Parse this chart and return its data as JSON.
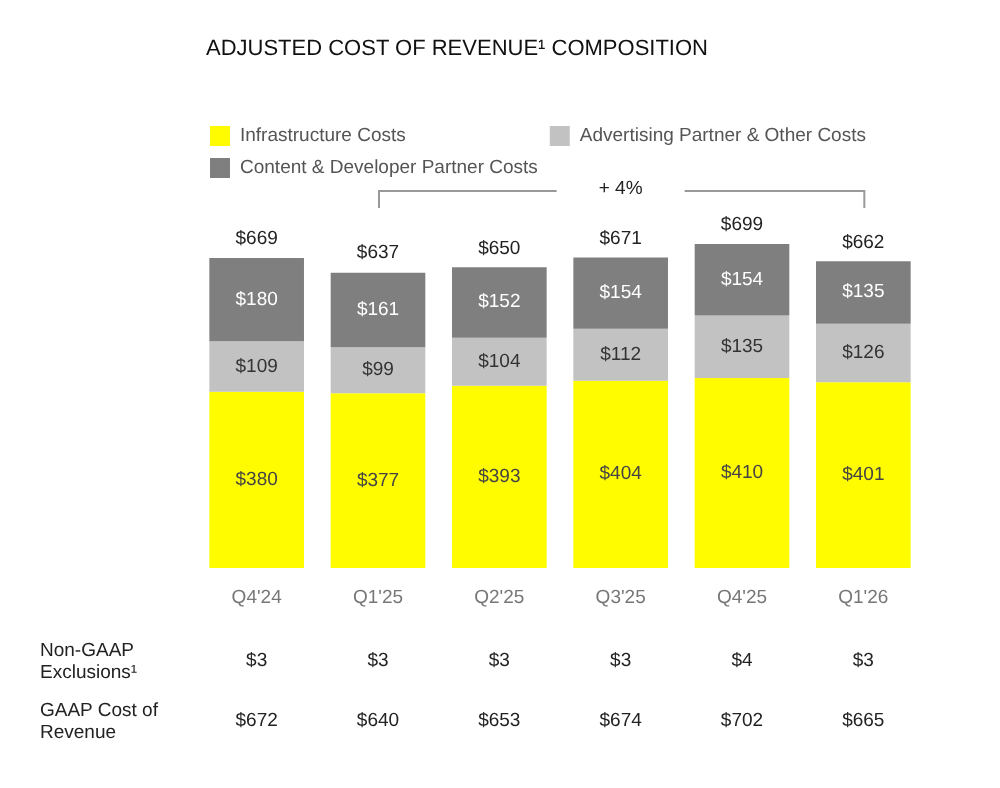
{
  "chart_data": {
    "type": "bar",
    "title": "ADJUSTED COST OF REVENUE¹ COMPOSITION",
    "stacked": true,
    "legend": "top left",
    "categories": [
      "Q4'24",
      "Q1'25",
      "Q2'25",
      "Q3'25",
      "Q4'25",
      "Q1'26"
    ],
    "series": [
      {
        "name": "Infrastructure Costs",
        "color": "#fffc00",
        "values": [
          380,
          377,
          393,
          404,
          410,
          401
        ],
        "value_labels": [
          "$380",
          "$377",
          "$393",
          "$404",
          "$410",
          "$401"
        ]
      },
      {
        "name": "Advertising Partner & Other Costs",
        "color": "#c2c2c2",
        "values": [
          109,
          99,
          104,
          112,
          135,
          126
        ],
        "value_labels": [
          "$109",
          "$99",
          "$104",
          "$112",
          "$135",
          "$126"
        ]
      },
      {
        "name": "Content & Developer Partner Costs",
        "color": "#7f7f7f",
        "values": [
          180,
          161,
          152,
          154,
          154,
          135
        ],
        "value_labels": [
          "$180",
          "$161",
          "$152",
          "$154",
          "$154",
          "$135"
        ]
      }
    ],
    "totals": [
      "$669",
      "$637",
      "$650",
      "$671",
      "$699",
      "$662"
    ],
    "annotations": [
      "+ 4%",
      "Non-GAAP Exclusions¹",
      "$3",
      "$3",
      "$3",
      "$3",
      "$4",
      "$3",
      "GAAP Cost of Revenue",
      "$672",
      "$640",
      "$653",
      "$674",
      "$702",
      "$665"
    ]
  }
}
